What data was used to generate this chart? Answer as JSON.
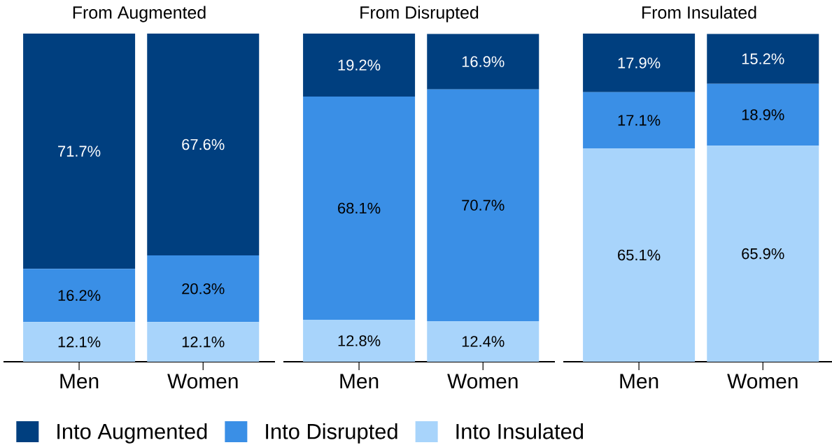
{
  "chart_data": [
    {
      "type": "bar",
      "stacked": true,
      "title": "From Augmented",
      "categories": [
        "Men",
        "Women"
      ],
      "legend": "bottom",
      "series": [
        {
          "name": "Into Insulated",
          "color": "#a8d4fb",
          "values": [
            12.1,
            12.1
          ],
          "value_labels": [
            "12.1%",
            "12.1%"
          ]
        },
        {
          "name": "Into Disrupted",
          "color": "#3a8fe6",
          "values": [
            16.2,
            20.3
          ],
          "value_labels": [
            "16.2%",
            "20.3%"
          ]
        },
        {
          "name": "Into Augmented",
          "color": "#003f7f",
          "values": [
            71.7,
            67.6
          ],
          "value_labels": [
            "71.7%",
            "67.6%"
          ]
        }
      ]
    },
    {
      "type": "bar",
      "stacked": true,
      "title": "From Disrupted",
      "categories": [
        "Men",
        "Women"
      ],
      "series": [
        {
          "color": "#a8d4fb",
          "values": [
            12.8,
            12.4
          ],
          "value_labels": [
            "12.8%",
            "12.4%"
          ]
        },
        {
          "color": "#3a8fe6",
          "values": [
            68.1,
            70.7
          ],
          "value_labels": [
            "68.1%",
            "70.7%"
          ]
        },
        {
          "color": "#003f7f",
          "values": [
            19.2,
            16.9
          ],
          "value_labels": [
            "19.2%",
            "16.9%"
          ]
        }
      ]
    },
    {
      "type": "bar",
      "stacked": true,
      "title": "From Insulated",
      "categories": [
        "Men",
        "Women"
      ],
      "series": [
        {
          "color": "#a8d4fb",
          "values": [
            65.1,
            65.9
          ],
          "value_labels": [
            "65.1%",
            "65.9%"
          ]
        },
        {
          "color": "#3a8fe6",
          "values": [
            17.1,
            18.9
          ],
          "value_labels": [
            "17.1%",
            "18.9%"
          ]
        },
        {
          "color": "#003f7f",
          "values": [
            17.9,
            15.2
          ],
          "value_labels": [
            "17.9%",
            "15.2%"
          ]
        }
      ]
    }
  ]
}
